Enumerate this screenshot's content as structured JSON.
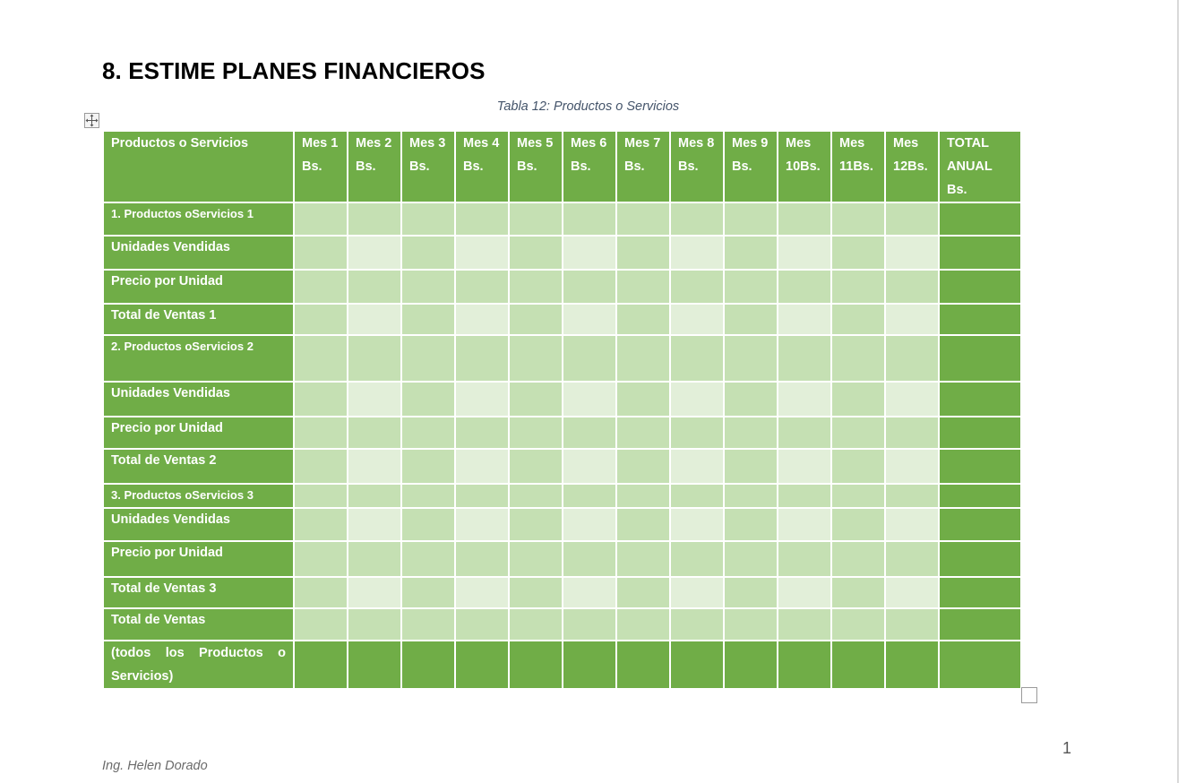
{
  "heading": "8. ESTIME PLANES FINANCIEROS",
  "caption": "Tabla 12: Productos o Servicios",
  "table": {
    "header": [
      "Productos o Servicios",
      "Mes 1\nBs.",
      "Mes 2\nBs.",
      "Mes 3\nBs.",
      "Mes 4\nBs.",
      "Mes 5\nBs.",
      "Mes 6\nBs.",
      "Mes 7\nBs.",
      "Mes 8\nBs.",
      "Mes 9\nBs.",
      "Mes\n10Bs.",
      "Mes\n11Bs.",
      "Mes\n12Bs.",
      "TOTAL\nANUAL\nBs."
    ],
    "rows": [
      {
        "label": "1. Productos oServicios 1"
      },
      {
        "label": "Unidades Vendidas"
      },
      {
        "label": "Precio por Unidad"
      },
      {
        "label": " Total de Ventas 1"
      },
      {
        "label": "2. Productos oServicios 2"
      },
      {
        "label": "Unidades Vendidas"
      },
      {
        "label": "Precio por Unidad"
      },
      {
        "label": " Total de Ventas 2"
      },
      {
        "label": "3. Productos oServicios 3"
      },
      {
        "label": "Unidades Vendidas"
      },
      {
        "label": "Precio por Unidad"
      },
      {
        "label": " Total de Ventas 3"
      },
      {
        "label": " Total de Ventas"
      },
      {
        "label": "(todos los Productos o Servicios)"
      }
    ]
  },
  "page_number": "1",
  "footer": "Ing. Helen Dorado",
  "colors": {
    "header_green": "#70ad47",
    "cell_light": "#c5e0b3",
    "cell_lighter": "#e2efd9",
    "caption": "#44546a"
  }
}
